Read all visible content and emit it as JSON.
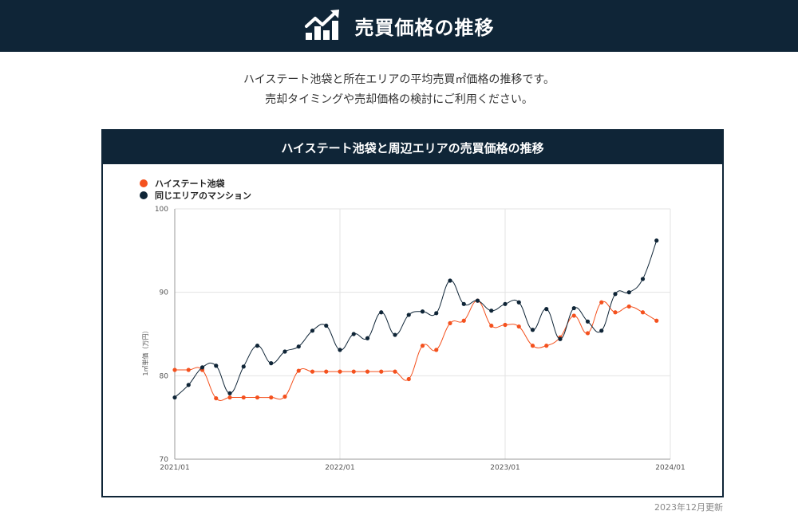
{
  "header": {
    "title": "売買価格の推移",
    "icon": "trending-chart-icon"
  },
  "intro": {
    "line1": "ハイステート池袋と所在エリアの平均売買㎡価格の推移です。",
    "line2": "売却タイミングや売却価格の検討にご利用ください。"
  },
  "card": {
    "title": "ハイステート池袋と周辺エリアの売買価格の推移"
  },
  "updated": "2023年12月更新",
  "chart_data": {
    "type": "line",
    "ylabel": "1㎡単価（万円）",
    "ylim": [
      70,
      100
    ],
    "yticks": [
      70,
      80,
      90,
      100
    ],
    "xticks": [
      "2021/01",
      "2022/01",
      "2023/01",
      "2024/01"
    ],
    "xlim": [
      "2021/01",
      "2024/01"
    ],
    "x": [
      "2021/01",
      "2021/02",
      "2021/03",
      "2021/04",
      "2021/05",
      "2021/06",
      "2021/07",
      "2021/08",
      "2021/09",
      "2021/10",
      "2021/11",
      "2021/12",
      "2022/01",
      "2022/02",
      "2022/03",
      "2022/04",
      "2022/05",
      "2022/06",
      "2022/07",
      "2022/08",
      "2022/09",
      "2022/10",
      "2022/11",
      "2022/12",
      "2023/01",
      "2023/02",
      "2023/03",
      "2023/04",
      "2023/05",
      "2023/06",
      "2023/07",
      "2023/08",
      "2023/09",
      "2023/10",
      "2023/11",
      "2023/12"
    ],
    "legend_position": "top-left",
    "grid": true,
    "series": [
      {
        "name": "ハイステート池袋",
        "color": "#f4511e",
        "values": [
          80.7,
          80.7,
          80.7,
          77.3,
          77.4,
          77.4,
          77.4,
          77.4,
          77.5,
          80.6,
          80.5,
          80.5,
          80.5,
          80.5,
          80.5,
          80.5,
          80.5,
          79.6,
          83.6,
          83.1,
          86.3,
          86.6,
          89.0,
          86.0,
          86.1,
          85.9,
          83.6,
          83.6,
          84.6,
          87.2,
          85.1,
          88.8,
          87.6,
          88.3,
          87.6,
          86.6
        ]
      },
      {
        "name": "同じエリアのマンション",
        "color": "#0f2537",
        "values": [
          77.4,
          78.9,
          81.0,
          81.2,
          77.9,
          81.1,
          83.6,
          81.5,
          82.9,
          83.5,
          85.4,
          86.0,
          83.1,
          85.0,
          84.5,
          87.6,
          84.9,
          87.3,
          87.7,
          87.5,
          91.4,
          88.6,
          89.0,
          87.8,
          88.6,
          88.8,
          85.5,
          88.0,
          84.4,
          88.1,
          86.5,
          85.4,
          89.8,
          90.0,
          91.6,
          96.2
        ]
      }
    ]
  }
}
